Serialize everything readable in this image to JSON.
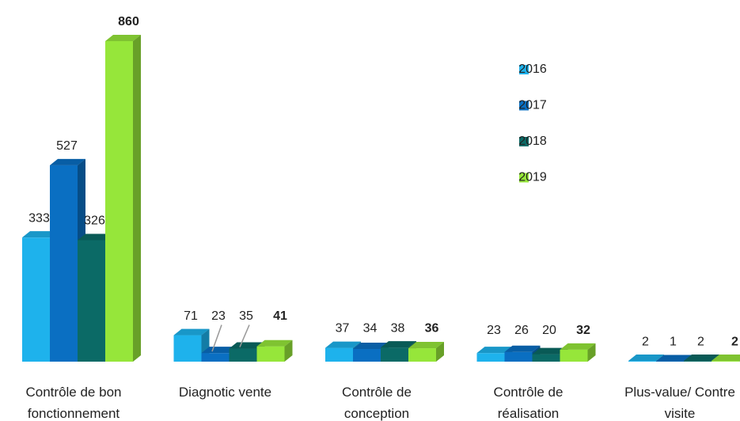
{
  "chart_data": {
    "type": "bar3d",
    "categories": [
      "Contrôle de bon fonctionnement",
      "Diagnotic vente",
      "Contrôle de conception",
      "Contrôle de réalisation",
      "Plus-value/ Contre visite"
    ],
    "series": [
      {
        "name": "2016",
        "color": "#1eb2ec",
        "values": [
          333,
          71,
          37,
          23,
          2
        ]
      },
      {
        "name": "2017",
        "color": "#0a6fc2",
        "values": [
          527,
          23,
          34,
          26,
          1
        ]
      },
      {
        "name": "2018",
        "color": "#0b6a66",
        "values": [
          326,
          35,
          38,
          20,
          2
        ]
      },
      {
        "name": "2019",
        "color": "#96e63a",
        "values": [
          860,
          41,
          36,
          32,
          2
        ]
      }
    ],
    "legend": "right"
  }
}
